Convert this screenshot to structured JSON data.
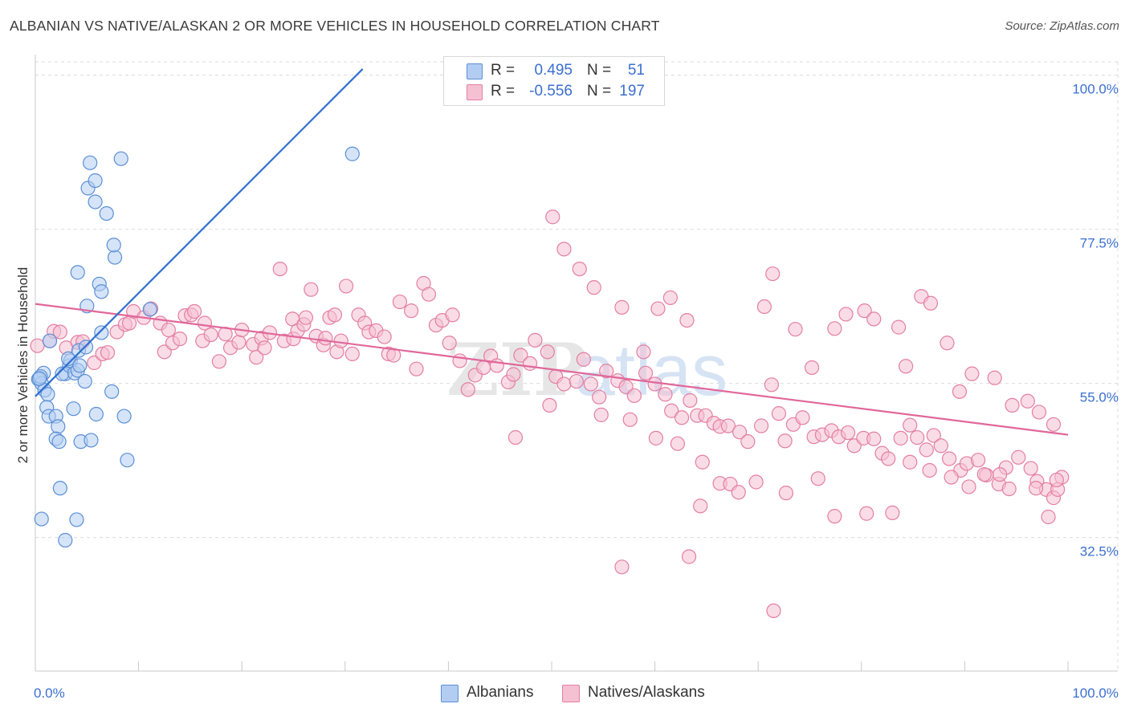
{
  "title": "ALBANIAN VS NATIVE/ALASKAN 2 OR MORE VEHICLES IN HOUSEHOLD CORRELATION CHART",
  "source": "Source: ZipAtlas.com",
  "watermark": {
    "zip": "ZIP",
    "atlas": "atlas"
  },
  "colors": {
    "blue_fill": "#b3cdf2",
    "blue_stroke": "#5b8fd6",
    "blue_line": "#2f6fd0",
    "pink_fill": "#f5c0d2",
    "pink_stroke": "#e37fa2",
    "pink_line": "#e0679a",
    "tick_text": "#3b6fd0",
    "grid": "#dcdcdc"
  },
  "legend": {
    "rows": [
      {
        "r_label": "R =",
        "r_value": "0.495",
        "n_label": "N =",
        "n_value": "51"
      },
      {
        "r_label": "R =",
        "r_value": "-0.556",
        "n_label": "N =",
        "n_value": "197"
      }
    ],
    "series_names": [
      "Albanians",
      "Natives/Alaskans"
    ]
  },
  "chart_data": {
    "type": "scatter",
    "title": "ALBANIAN VS NATIVE/ALASKAN 2 OR MORE VEHICLES IN HOUSEHOLD CORRELATION CHART",
    "xlabel": "",
    "ylabel": "2 or more Vehicles in Household",
    "xlim": [
      0,
      100
    ],
    "ylim": [
      13,
      103
    ],
    "y_ticks": [
      32.5,
      55.0,
      77.5,
      100.0
    ],
    "y_tick_labels": [
      "32.5%",
      "55.0%",
      "77.5%",
      "100.0%"
    ],
    "x_tick_labels": [
      "0.0%",
      "100.0%"
    ],
    "x_minor_ticks": [
      0,
      10,
      20,
      30,
      40,
      50,
      60,
      70,
      80,
      90,
      100
    ],
    "grid": true,
    "legend_position": "top-center",
    "series": [
      {
        "name": "Albanians",
        "r": 0.495,
        "n": 51,
        "trend": {
          "x": [
            0,
            31.7
          ],
          "y": [
            53.1,
            100.9
          ]
        },
        "points": [
          [
            0.8,
            56.5
          ],
          [
            0.3,
            55.6
          ],
          [
            0.6,
            55.0
          ],
          [
            0.9,
            54.0
          ],
          [
            0.5,
            56.0
          ],
          [
            1.2,
            53.4
          ],
          [
            1.4,
            61.2
          ],
          [
            2.9,
            56.4
          ],
          [
            2.6,
            56.4
          ],
          [
            3.3,
            57.6
          ],
          [
            3.4,
            58.3
          ],
          [
            3.2,
            58.6
          ],
          [
            3.8,
            56.5
          ],
          [
            4.1,
            56.9
          ],
          [
            4.2,
            59.8
          ],
          [
            4.3,
            57.6
          ],
          [
            4.8,
            55.3
          ],
          [
            1.1,
            51.5
          ],
          [
            1.3,
            50.2
          ],
          [
            2.0,
            50.2
          ],
          [
            2.2,
            48.7
          ],
          [
            3.7,
            51.3
          ],
          [
            5.9,
            50.5
          ],
          [
            2.0,
            46.9
          ],
          [
            2.3,
            46.5
          ],
          [
            4.4,
            46.5
          ],
          [
            5.4,
            46.7
          ],
          [
            8.6,
            50.2
          ],
          [
            8.9,
            43.8
          ],
          [
            2.4,
            39.7
          ],
          [
            0.6,
            35.2
          ],
          [
            4.0,
            35.1
          ],
          [
            2.9,
            32.1
          ],
          [
            4.9,
            60.3
          ],
          [
            6.4,
            62.4
          ],
          [
            6.2,
            69.5
          ],
          [
            6.4,
            68.4
          ],
          [
            4.1,
            71.2
          ],
          [
            7.7,
            73.4
          ],
          [
            7.6,
            75.2
          ],
          [
            6.9,
            79.8
          ],
          [
            5.8,
            81.5
          ],
          [
            5.1,
            83.5
          ],
          [
            5.8,
            84.6
          ],
          [
            5.3,
            87.2
          ],
          [
            8.3,
            87.8
          ],
          [
            7.4,
            53.8
          ],
          [
            11.1,
            65.8
          ],
          [
            5.0,
            66.3
          ],
          [
            30.7,
            88.5
          ],
          [
            0.4,
            55.7
          ]
        ]
      },
      {
        "name": "Natives/Alaskans",
        "r": -0.556,
        "n": 197,
        "trend": {
          "x": [
            0,
            100
          ],
          "y": [
            66.6,
            47.5
          ]
        },
        "points": [
          [
            0.2,
            60.5
          ],
          [
            1.4,
            61.2
          ],
          [
            1.8,
            62.6
          ],
          [
            2.4,
            62.5
          ],
          [
            3.0,
            60.2
          ],
          [
            4.1,
            61.0
          ],
          [
            4.6,
            61.1
          ],
          [
            5.7,
            58.0
          ],
          [
            6.5,
            59.3
          ],
          [
            7.0,
            59.5
          ],
          [
            7.9,
            62.5
          ],
          [
            8.7,
            63.6
          ],
          [
            9.1,
            63.8
          ],
          [
            9.5,
            65.5
          ],
          [
            10.5,
            64.6
          ],
          [
            11.2,
            65.9
          ],
          [
            12.1,
            63.8
          ],
          [
            12.5,
            59.6
          ],
          [
            12.9,
            62.8
          ],
          [
            13.3,
            60.9
          ],
          [
            14.0,
            61.5
          ],
          [
            14.5,
            64.9
          ],
          [
            15.1,
            65.0
          ],
          [
            15.4,
            65.5
          ],
          [
            16.2,
            61.2
          ],
          [
            16.4,
            63.8
          ],
          [
            17.0,
            62.1
          ],
          [
            17.8,
            58.2
          ],
          [
            18.4,
            62.2
          ],
          [
            18.9,
            60.2
          ],
          [
            19.7,
            61.0
          ],
          [
            20.0,
            62.8
          ],
          [
            21.1,
            60.7
          ],
          [
            21.4,
            58.8
          ],
          [
            21.9,
            61.6
          ],
          [
            22.2,
            60.2
          ],
          [
            22.7,
            62.4
          ],
          [
            23.7,
            71.7
          ],
          [
            24.1,
            61.2
          ],
          [
            24.9,
            64.4
          ],
          [
            25.0,
            61.5
          ],
          [
            25.4,
            62.7
          ],
          [
            26.0,
            63.6
          ],
          [
            26.2,
            64.6
          ],
          [
            26.7,
            68.7
          ],
          [
            27.2,
            61.9
          ],
          [
            27.9,
            60.6
          ],
          [
            28.1,
            61.6
          ],
          [
            28.5,
            64.6
          ],
          [
            29.0,
            65.0
          ],
          [
            29.2,
            59.6
          ],
          [
            29.6,
            61.2
          ],
          [
            30.1,
            69.2
          ],
          [
            30.7,
            59.3
          ],
          [
            31.3,
            65.0
          ],
          [
            31.9,
            63.8
          ],
          [
            32.3,
            62.5
          ],
          [
            33.0,
            62.7
          ],
          [
            33.8,
            61.8
          ],
          [
            34.2,
            59.3
          ],
          [
            34.7,
            59.1
          ],
          [
            35.3,
            66.9
          ],
          [
            36.4,
            65.6
          ],
          [
            36.9,
            57.1
          ],
          [
            37.6,
            69.6
          ],
          [
            38.1,
            68.0
          ],
          [
            38.8,
            63.5
          ],
          [
            39.4,
            64.2
          ],
          [
            40.1,
            60.9
          ],
          [
            40.4,
            65.0
          ],
          [
            41.1,
            58.3
          ],
          [
            41.9,
            54.1
          ],
          [
            42.6,
            56.2
          ],
          [
            43.4,
            57.3
          ],
          [
            44.1,
            59.0
          ],
          [
            44.7,
            57.6
          ],
          [
            45.8,
            55.2
          ],
          [
            46.3,
            56.3
          ],
          [
            47.0,
            59.1
          ],
          [
            47.9,
            57.9
          ],
          [
            48.4,
            61.3
          ],
          [
            49.6,
            59.6
          ],
          [
            50.4,
            56.0
          ],
          [
            51.2,
            54.9
          ],
          [
            52.4,
            55.3
          ],
          [
            53.1,
            58.5
          ],
          [
            53.8,
            54.9
          ],
          [
            54.6,
            53.0
          ],
          [
            55.3,
            56.8
          ],
          [
            56.4,
            55.4
          ],
          [
            57.2,
            54.5
          ],
          [
            58.0,
            53.2
          ],
          [
            59.1,
            56.5
          ],
          [
            60.0,
            54.9
          ],
          [
            61.0,
            53.4
          ],
          [
            61.6,
            51.0
          ],
          [
            62.6,
            50.0
          ],
          [
            63.4,
            52.5
          ],
          [
            64.1,
            50.3
          ],
          [
            64.9,
            50.3
          ],
          [
            65.7,
            49.2
          ],
          [
            66.3,
            48.7
          ],
          [
            67.1,
            48.8
          ],
          [
            68.2,
            47.9
          ],
          [
            69.0,
            46.5
          ],
          [
            70.3,
            48.8
          ],
          [
            71.3,
            54.8
          ],
          [
            72.0,
            50.6
          ],
          [
            72.6,
            46.6
          ],
          [
            73.4,
            49.0
          ],
          [
            74.3,
            50.0
          ],
          [
            75.4,
            47.2
          ],
          [
            76.2,
            47.5
          ],
          [
            77.1,
            48.1
          ],
          [
            77.8,
            47.2
          ],
          [
            78.7,
            47.8
          ],
          [
            79.3,
            45.9
          ],
          [
            80.2,
            47.0
          ],
          [
            81.2,
            46.9
          ],
          [
            82.0,
            44.8
          ],
          [
            82.6,
            44.0
          ],
          [
            83.8,
            47.0
          ],
          [
            84.7,
            48.9
          ],
          [
            85.4,
            47.1
          ],
          [
            86.3,
            45.3
          ],
          [
            87.0,
            47.4
          ],
          [
            87.7,
            45.9
          ],
          [
            88.5,
            44.0
          ],
          [
            89.6,
            42.3
          ],
          [
            90.2,
            43.3
          ],
          [
            91.3,
            43.8
          ],
          [
            92.1,
            41.6
          ],
          [
            93.3,
            40.3
          ],
          [
            94.0,
            42.7
          ],
          [
            95.2,
            44.2
          ],
          [
            96.4,
            42.6
          ],
          [
            97.0,
            40.7
          ],
          [
            97.9,
            39.5
          ],
          [
            98.6,
            38.3
          ],
          [
            99.4,
            41.3
          ],
          [
            50.1,
            79.3
          ],
          [
            51.2,
            74.6
          ],
          [
            52.7,
            71.7
          ],
          [
            54.1,
            69.0
          ],
          [
            56.8,
            66.1
          ],
          [
            58.9,
            59.6
          ],
          [
            60.3,
            65.9
          ],
          [
            61.5,
            67.5
          ],
          [
            63.1,
            64.2
          ],
          [
            70.6,
            66.2
          ],
          [
            71.4,
            71.0
          ],
          [
            73.6,
            62.9
          ],
          [
            75.2,
            57.3
          ],
          [
            77.4,
            63.0
          ],
          [
            78.5,
            65.1
          ],
          [
            80.3,
            65.6
          ],
          [
            81.2,
            64.4
          ],
          [
            83.6,
            63.2
          ],
          [
            84.3,
            57.5
          ],
          [
            85.8,
            67.7
          ],
          [
            86.7,
            66.7
          ],
          [
            88.3,
            60.9
          ],
          [
            89.5,
            53.8
          ],
          [
            90.7,
            56.4
          ],
          [
            92.9,
            55.8
          ],
          [
            94.6,
            51.8
          ],
          [
            96.1,
            52.4
          ],
          [
            97.2,
            50.8
          ],
          [
            98.6,
            49.0
          ],
          [
            99.0,
            39.5
          ],
          [
            46.5,
            47.1
          ],
          [
            49.8,
            51.8
          ],
          [
            54.8,
            50.4
          ],
          [
            57.6,
            49.7
          ],
          [
            60.1,
            47.0
          ],
          [
            62.2,
            46.2
          ],
          [
            64.6,
            43.5
          ],
          [
            66.3,
            40.4
          ],
          [
            67.3,
            40.3
          ],
          [
            68.1,
            39.1
          ],
          [
            69.8,
            40.6
          ],
          [
            72.7,
            39.0
          ],
          [
            75.8,
            41.1
          ],
          [
            77.4,
            35.6
          ],
          [
            80.5,
            36.0
          ],
          [
            83.0,
            36.1
          ],
          [
            84.7,
            43.5
          ],
          [
            86.6,
            42.3
          ],
          [
            88.7,
            41.3
          ],
          [
            90.4,
            39.9
          ],
          [
            91.9,
            41.7
          ],
          [
            93.4,
            41.7
          ],
          [
            94.3,
            39.6
          ],
          [
            96.9,
            39.7
          ],
          [
            98.1,
            35.5
          ],
          [
            98.9,
            40.9
          ],
          [
            64.4,
            37.1
          ],
          [
            56.8,
            28.2
          ],
          [
            63.3,
            29.7
          ],
          [
            71.5,
            21.8
          ]
        ]
      }
    ]
  }
}
